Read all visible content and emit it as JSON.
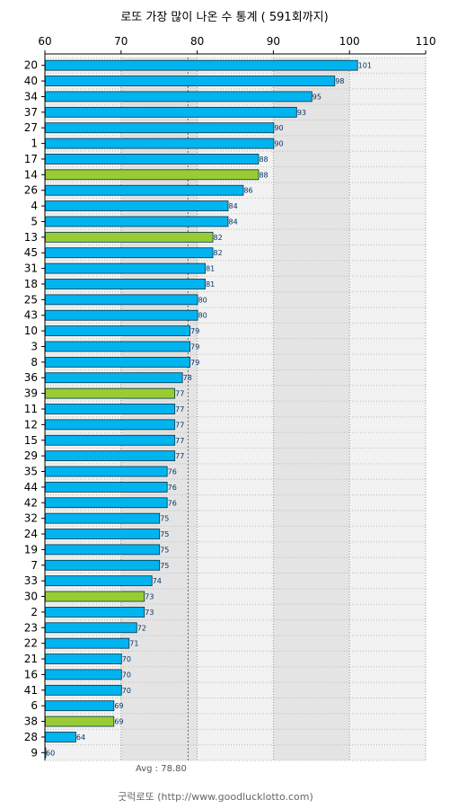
{
  "title": "로또 가장 많이 나온 수 통계 ( 591회까지)",
  "footer_name": "굿럭로또",
  "footer_url": "(http://www.goodlucklotto.com)",
  "avg_label": "Avg : 78.80",
  "chart_data": {
    "type": "bar",
    "orientation": "horizontal",
    "title": "로또 가장 많이 나온 수 통계 ( 591회까지)",
    "categories": [
      "20",
      "40",
      "34",
      "37",
      "27",
      "1",
      "17",
      "14",
      "26",
      "4",
      "5",
      "13",
      "45",
      "31",
      "18",
      "25",
      "43",
      "10",
      "3",
      "8",
      "36",
      "39",
      "11",
      "12",
      "15",
      "29",
      "35",
      "44",
      "42",
      "32",
      "24",
      "19",
      "7",
      "33",
      "30",
      "2",
      "23",
      "22",
      "21",
      "16",
      "41",
      "6",
      "38",
      "28",
      "9"
    ],
    "values": [
      101,
      98,
      95,
      93,
      90,
      90,
      88,
      88,
      86,
      84,
      84,
      82,
      82,
      81,
      81,
      80,
      80,
      79,
      79,
      79,
      78,
      77,
      77,
      77,
      77,
      77,
      76,
      76,
      76,
      75,
      75,
      75,
      75,
      74,
      73,
      73,
      72,
      71,
      70,
      70,
      70,
      69,
      69,
      64,
      60
    ],
    "highlighted": [
      "14",
      "13",
      "39",
      "30",
      "38"
    ],
    "xlim": [
      60,
      110
    ],
    "xticks": [
      60,
      70,
      80,
      90,
      100,
      110
    ],
    "average": 78.8,
    "grid": true,
    "colors": {
      "bar": "#00b4f0",
      "highlight": "#99cc33",
      "bar_stroke": "#003344",
      "band_light": "#f2f2f2",
      "band_dark": "#e4e4e4",
      "grid": "#999999"
    }
  }
}
